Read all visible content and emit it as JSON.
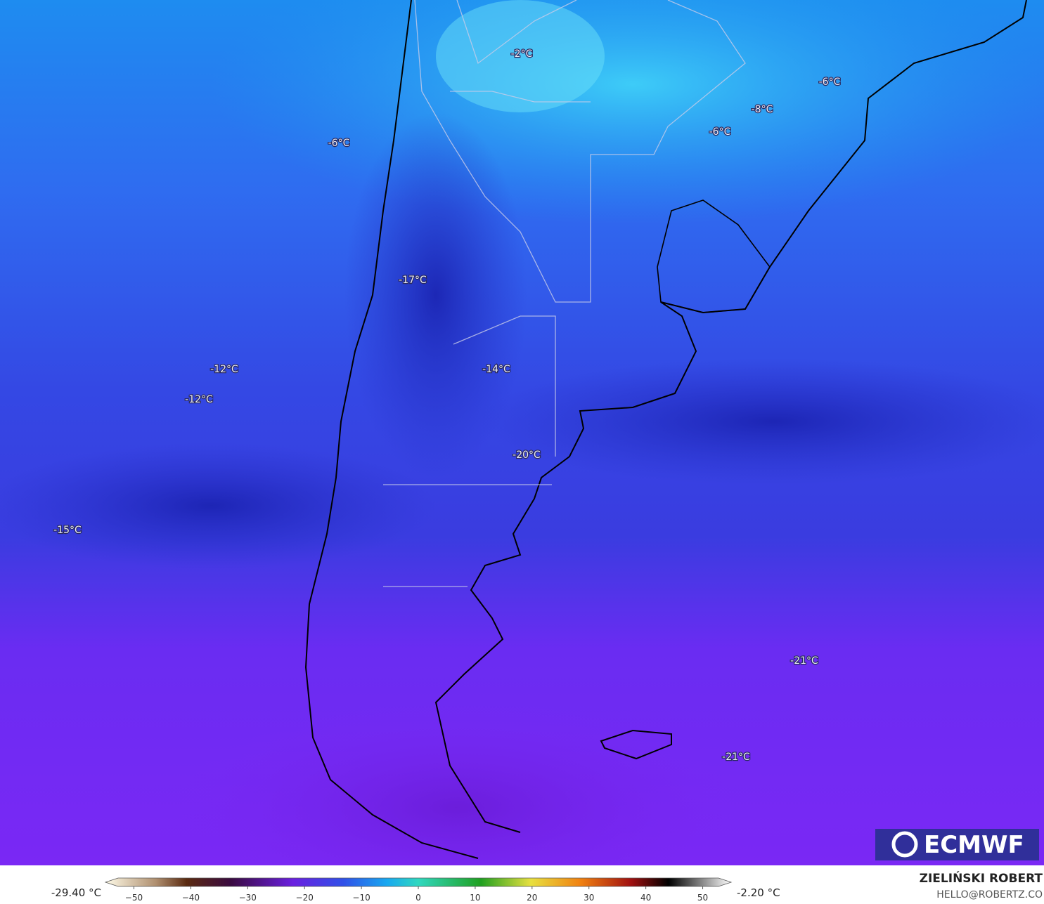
{
  "map": {
    "isotherm_labels": [
      "-2°C",
      "-6°C",
      "-8°C",
      "-6°C",
      "-6°C",
      "-17°C",
      "-12°C",
      "-14°C",
      "-12°C",
      "-20°C",
      "-15°C",
      "-21°C",
      "-21°C"
    ]
  },
  "logo": "ECMWF",
  "colorbar": {
    "min_label": "-29.40 °C",
    "max_label": "-2.20 °C",
    "range": [
      -55,
      55
    ],
    "ticks": [
      {
        "value": -50,
        "label": "−50"
      },
      {
        "value": -40,
        "label": "−40"
      },
      {
        "value": -30,
        "label": "−30"
      },
      {
        "value": -20,
        "label": "−20"
      },
      {
        "value": -10,
        "label": "−10"
      },
      0,
      10,
      20,
      30,
      40,
      50
    ]
  },
  "credit": {
    "author": "ZIELIŃSKI ROBERT",
    "contact": "HELLO@ROBERTZ.CO"
  }
}
